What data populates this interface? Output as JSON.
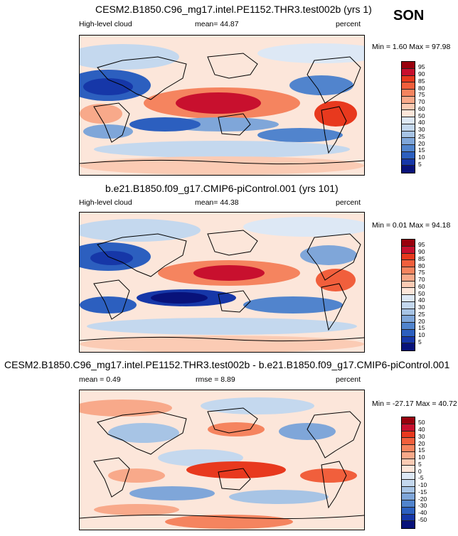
{
  "season": "SON",
  "panels": [
    {
      "title": "CESM2.B1850.C96_mg17.intel.PE1152.THR3.test002b (yrs 1)",
      "left_label": "High-level cloud",
      "center_label": "mean=  44.87",
      "right_label": "percent",
      "minmax": "Min =   1.60 Max =  97.98",
      "levels": [
        "95",
        "90",
        "85",
        "80",
        "75",
        "70",
        "60",
        "50",
        "40",
        "30",
        "25",
        "20",
        "15",
        "10",
        "5"
      ]
    },
    {
      "title": "b.e21.B1850.f09_g17.CMIP6-piControl.001 (yrs 101)",
      "left_label": "High-level cloud",
      "center_label": "mean=  44.38",
      "right_label": "percent",
      "minmax": "Min =   0.01 Max =  94.18",
      "levels": [
        "95",
        "90",
        "85",
        "80",
        "75",
        "70",
        "60",
        "50",
        "40",
        "30",
        "25",
        "20",
        "15",
        "10",
        "5"
      ]
    },
    {
      "title": "CESM2.B1850.C96_mg17.intel.PE1152.THR3.test002b - b.e21.B1850.f09_g17.CMIP6-piControl.001",
      "left_label": "mean =   0.49",
      "center_label": "rmse =   8.89",
      "right_label": "percent",
      "minmax": "Min = -27.17 Max =  40.72",
      "levels": [
        "50",
        "40",
        "30",
        "20",
        "15",
        "10",
        "5",
        "0",
        "-5",
        "-10",
        "-15",
        "-20",
        "-30",
        "-40",
        "-50"
      ]
    }
  ],
  "colors": {
    "scale": [
      "#99000d",
      "#c8102e",
      "#e8391e",
      "#f15f3c",
      "#f5845f",
      "#f8a98a",
      "#fbcbb4",
      "#fce6da",
      "#dde8f5",
      "#c4d8ee",
      "#a7c4e5",
      "#7fa6d9",
      "#5184cd",
      "#2c5fbf",
      "#1637a8",
      "#08127a"
    ]
  }
}
